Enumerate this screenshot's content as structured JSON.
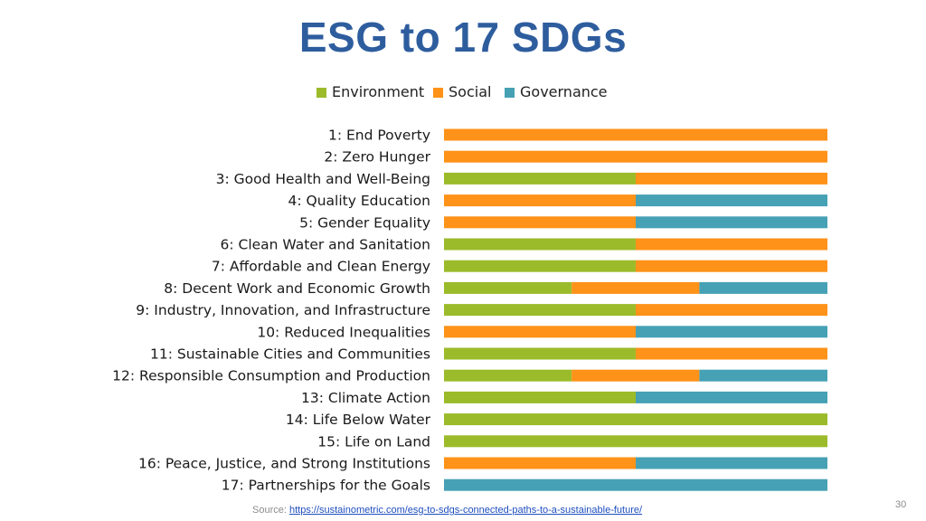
{
  "slide": {
    "title": "ESG to 17 SDGs",
    "source_label": "Source:",
    "source_link": "https://sustainometric.com/esg-to-sdgs-connected-paths-to-a-sustainable-future/",
    "page_number": "30"
  },
  "chart_data": {
    "type": "bar",
    "orientation": "horizontal",
    "stacked": true,
    "title": "ESG to 17 SDGs",
    "legend_position": "top",
    "xlabel": "",
    "ylabel": "",
    "xlim": [
      0,
      100
    ],
    "grid": false,
    "categories": [
      "1: End Poverty",
      "2: Zero Hunger",
      "3: Good Health and Well-Being",
      "4: Quality Education",
      "5: Gender Equality",
      "6: Clean Water and Sanitation",
      "7: Affordable and Clean Energy",
      "8: Decent Work and Economic Growth",
      "9: Industry, Innovation, and Infrastructure",
      "10: Reduced Inequalities",
      "11: Sustainable Cities and Communities",
      "12: Responsible Consumption and Production",
      "13: Climate Action",
      "14: Life Below Water",
      "15: Life on Land",
      "16: Peace, Justice, and Strong Institutions",
      "17: Partnerships for the Goals"
    ],
    "series": [
      {
        "name": "Environment",
        "color": "#9bbb2a",
        "values": [
          0,
          0,
          50,
          0,
          0,
          50,
          50,
          33.3,
          50,
          0,
          50,
          33.3,
          50,
          100,
          100,
          0,
          0
        ]
      },
      {
        "name": "Social",
        "color": "#ff9218",
        "values": [
          100,
          100,
          50,
          50,
          50,
          50,
          50,
          33.3,
          50,
          50,
          50,
          33.3,
          0,
          0,
          0,
          50,
          0
        ]
      },
      {
        "name": "Governance",
        "color": "#46a1b5",
        "values": [
          0,
          0,
          0,
          50,
          50,
          0,
          0,
          33.4,
          0,
          50,
          0,
          33.4,
          50,
          0,
          0,
          50,
          100
        ]
      }
    ]
  }
}
